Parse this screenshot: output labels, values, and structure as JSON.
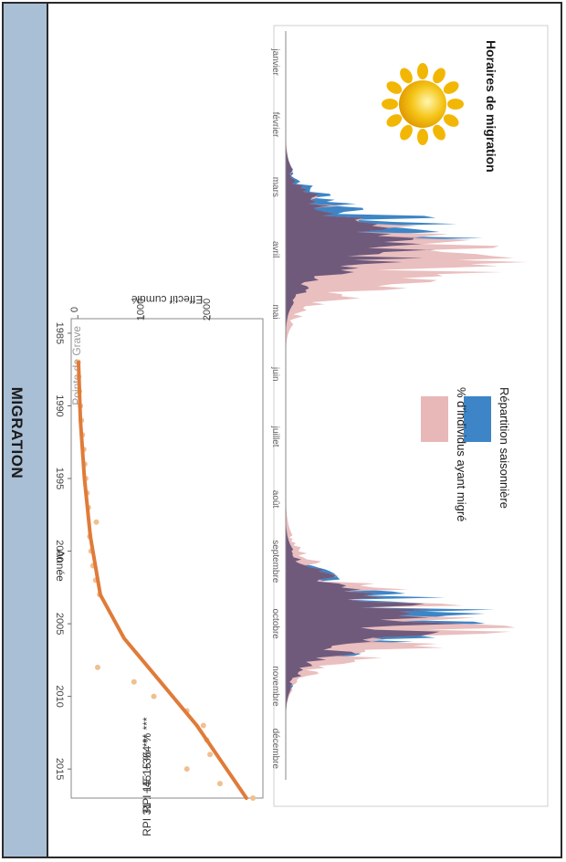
{
  "band": {
    "title": "MIGRATION"
  },
  "panel": {
    "title": "Horaires de migration",
    "sun_icon": "sun-icon"
  },
  "legend": {
    "items": [
      {
        "label": "Répartition saisonnière",
        "color": "#3d85c6"
      },
      {
        "label": "% d’individus ayant migré",
        "color": "#e8b8b8"
      }
    ]
  },
  "chart_data": [
    {
      "type": "area",
      "title": "",
      "xlabel": "",
      "ylabel": "",
      "categories": [
        "janvier",
        "février",
        "mars",
        "avril",
        "mai",
        "juin",
        "juillet",
        "août",
        "septembre",
        "octobre",
        "novembre",
        "décembre"
      ],
      "series": [
        {
          "name": "Répartition saisonnière",
          "color": "#3d85c6",
          "peaks": [
            {
              "month": 3.3,
              "height": 0.78
            },
            {
              "month": 9.4,
              "height": 0.86
            }
          ]
        },
        {
          "name": "% d’individus ayant migré",
          "color": "#e8b8b8",
          "peaks": [
            {
              "month": 3.7,
              "height": 0.95
            },
            {
              "month": 9.55,
              "height": 0.93
            }
          ]
        }
      ],
      "overlap_color": "#6f5a7c",
      "grid": false
    },
    {
      "type": "scatter",
      "title": "Pointe de Grave",
      "xlabel": "Année",
      "ylabel": "Effectif cumulé",
      "xlim": [
        1984,
        2017
      ],
      "ylim": [
        -100,
        2800
      ],
      "xticks": [
        1985,
        1990,
        1995,
        2000,
        2005,
        2010,
        2015
      ],
      "yticks": [
        0,
        1000,
        2000
      ],
      "points": [
        {
          "x": 1987,
          "y": 5
        },
        {
          "x": 1988,
          "y": 15
        },
        {
          "x": 1989,
          "y": 25
        },
        {
          "x": 1990,
          "y": 40
        },
        {
          "x": 1991,
          "y": 55
        },
        {
          "x": 1992,
          "y": 70
        },
        {
          "x": 1993,
          "y": 90
        },
        {
          "x": 1994,
          "y": 105
        },
        {
          "x": 1995,
          "y": 120
        },
        {
          "x": 1996,
          "y": 140
        },
        {
          "x": 1997,
          "y": 160
        },
        {
          "x": 1998,
          "y": 280
        },
        {
          "x": 1999,
          "y": 180
        },
        {
          "x": 2000,
          "y": 200
        },
        {
          "x": 2001,
          "y": 230
        },
        {
          "x": 2002,
          "y": 270
        },
        {
          "x": 2003,
          "y": 330
        },
        {
          "x": 2008,
          "y": 300
        },
        {
          "x": 2009,
          "y": 850
        },
        {
          "x": 2010,
          "y": 1150
        },
        {
          "x": 2011,
          "y": 1650
        },
        {
          "x": 2012,
          "y": 1900
        },
        {
          "x": 2013,
          "y": 1950
        },
        {
          "x": 2014,
          "y": 2000
        },
        {
          "x": 2015,
          "y": 1650
        },
        {
          "x": 2016,
          "y": 2150
        },
        {
          "x": 2017,
          "y": 2650
        }
      ],
      "trend": [
        {
          "x": 1987,
          "y": 10
        },
        {
          "x": 1991,
          "y": 40
        },
        {
          "x": 1995,
          "y": 100
        },
        {
          "x": 1999,
          "y": 190
        },
        {
          "x": 2003,
          "y": 340
        },
        {
          "x": 2006,
          "y": 700
        },
        {
          "x": 2009,
          "y": 1250
        },
        {
          "x": 2012,
          "y": 1800
        },
        {
          "x": 2015,
          "y": 2250
        },
        {
          "x": 2017,
          "y": 2550
        }
      ],
      "trend_color": "#e07b39",
      "point_color": "#f0c090",
      "annotations": [
        "RPI 31 : +4515 % ***",
        "RPI 15 : +364 % ***"
      ]
    }
  ]
}
